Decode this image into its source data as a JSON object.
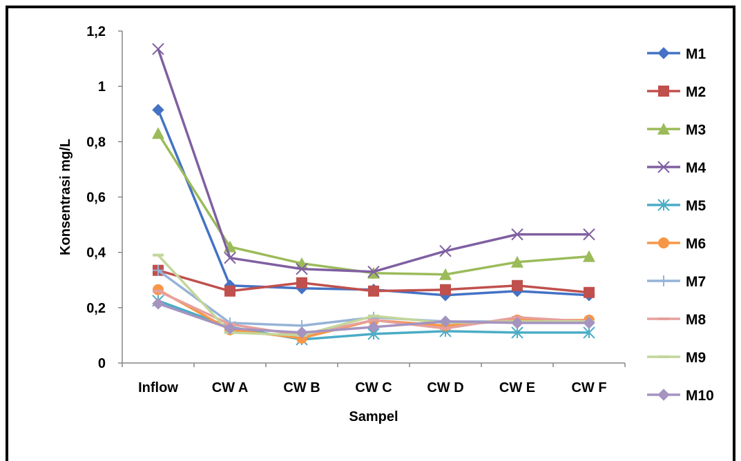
{
  "chart_data": {
    "type": "line",
    "title": "",
    "xlabel": "Sampel",
    "ylabel": "Konsentrasi mg/L",
    "categories": [
      "Inflow",
      "CW A",
      "CW B",
      "CW C",
      "CW D",
      "CW E",
      "CW F"
    ],
    "y_ticks": [
      "0",
      "0,2",
      "0,4",
      "0,6",
      "0,8",
      "1",
      "1,2"
    ],
    "ylim": [
      0,
      1.2
    ],
    "grid": false,
    "legend_position": "right",
    "series": [
      {
        "name": "M1",
        "color": "#4472C4",
        "marker": "diamond",
        "values": [
          0.915,
          0.28,
          0.27,
          0.265,
          0.245,
          0.26,
          0.245
        ]
      },
      {
        "name": "M2",
        "color": "#C0504D",
        "marker": "square",
        "values": [
          0.335,
          0.26,
          0.29,
          0.26,
          0.265,
          0.28,
          0.255
        ]
      },
      {
        "name": "M3",
        "color": "#9BBB59",
        "marker": "triangle",
        "values": [
          0.83,
          0.42,
          0.36,
          0.325,
          0.32,
          0.365,
          0.385
        ]
      },
      {
        "name": "M4",
        "color": "#7F5FA1",
        "marker": "x",
        "values": [
          1.135,
          0.38,
          0.34,
          0.33,
          0.405,
          0.465,
          0.465
        ]
      },
      {
        "name": "M5",
        "color": "#4BACC6",
        "marker": "star",
        "values": [
          0.225,
          0.13,
          0.085,
          0.105,
          0.115,
          0.11,
          0.11
        ]
      },
      {
        "name": "M6",
        "color": "#F79646",
        "marker": "circle",
        "values": [
          0.265,
          0.12,
          0.09,
          0.155,
          0.135,
          0.155,
          0.155
        ]
      },
      {
        "name": "M7",
        "color": "#95B3D7",
        "marker": "plus",
        "values": [
          0.335,
          0.145,
          0.135,
          0.165,
          0.15,
          0.15,
          0.15
        ]
      },
      {
        "name": "M8",
        "color": "#E6A09D",
        "marker": "line",
        "values": [
          0.26,
          0.14,
          0.1,
          0.155,
          0.125,
          0.165,
          0.15
        ]
      },
      {
        "name": "M9",
        "color": "#C3D69B",
        "marker": "line",
        "values": [
          0.39,
          0.11,
          0.1,
          0.17,
          0.145,
          0.15,
          0.15
        ]
      },
      {
        "name": "M10",
        "color": "#A593C0",
        "marker": "diamond",
        "values": [
          0.215,
          0.125,
          0.11,
          0.13,
          0.15,
          0.145,
          0.145
        ]
      }
    ]
  }
}
